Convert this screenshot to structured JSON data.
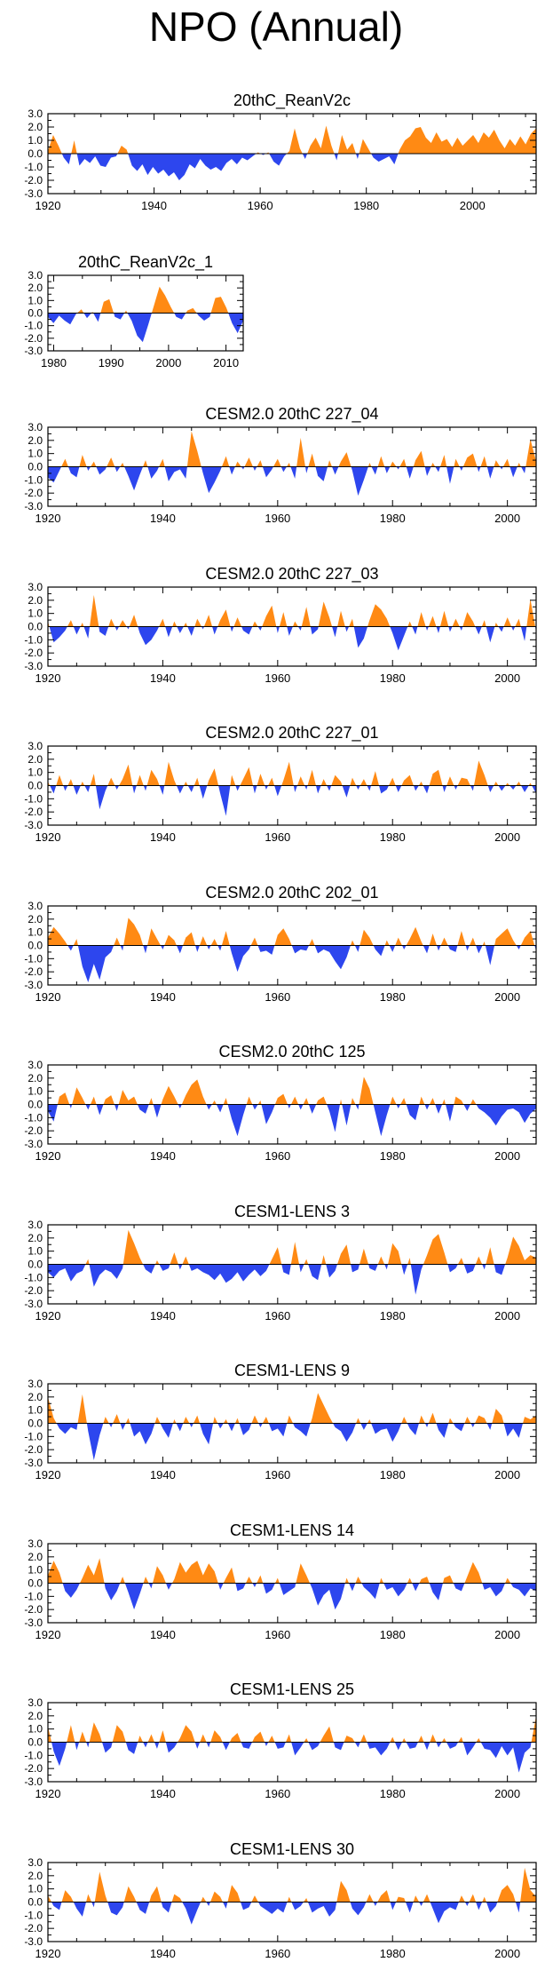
{
  "figure": {
    "title": "NPO (Annual)"
  },
  "colors": {
    "positive": "#ff8a14",
    "negative": "#2d46ee",
    "axis": "#000000"
  },
  "chart_data": [
    {
      "type": "area",
      "title": "20thC_ReanV2c",
      "x_start": 1920,
      "x_end": 2012,
      "ylim": [
        -3,
        3
      ],
      "xticks": [
        1920,
        1940,
        1960,
        1980,
        2000
      ],
      "yticks": [
        "3.0",
        "2.0",
        "1.0",
        "0.0",
        "-1.0",
        "-2.0",
        "-3.0"
      ],
      "values": [
        0.2,
        1.4,
        0.6,
        -0.3,
        -0.8,
        1.0,
        -0.9,
        -0.4,
        -0.7,
        -0.2,
        -0.9,
        -1.0,
        -0.3,
        -0.2,
        0.6,
        0.3,
        -0.9,
        -1.3,
        -0.8,
        -1.6,
        -1.0,
        -1.5,
        -1.2,
        -1.7,
        -1.4,
        -2.0,
        -1.6,
        -0.8,
        -1.1,
        -0.4,
        -0.9,
        -1.2,
        -1.0,
        -1.3,
        -0.7,
        -0.4,
        -0.8,
        -0.3,
        -0.5,
        -0.2,
        0.1,
        -0.1,
        0.1,
        -0.6,
        -0.9,
        -0.2,
        0.2,
        1.9,
        0.4,
        -0.4,
        0.6,
        1.2,
        0.4,
        2.1,
        0.6,
        -0.5,
        1.4,
        0.3,
        0.8,
        -0.4,
        1.1,
        0.4,
        -0.3,
        -0.6,
        -0.4,
        -0.2,
        -0.8,
        0.3,
        1.0,
        1.3,
        1.9,
        2.0,
        1.2,
        0.8,
        1.6,
        0.9,
        1.1,
        0.5,
        1.2,
        0.6,
        1.0,
        1.4,
        0.8,
        1.6,
        1.2,
        1.8,
        1.0,
        0.4,
        1.1,
        0.6,
        1.3,
        0.7,
        1.5,
        1.9
      ]
    },
    {
      "type": "area",
      "title": "20thC_ReanV2c_1",
      "x_start": 1979,
      "x_end": 2013,
      "ylim": [
        -3,
        3
      ],
      "xticks": [
        1980,
        1990,
        2000,
        2010
      ],
      "yticks": [
        "3.0",
        "2.0",
        "1.0",
        "0.0",
        "-1.0",
        "-2.0",
        "-3.0"
      ],
      "values": [
        -0.3,
        -0.8,
        -0.2,
        -0.6,
        -0.9,
        -0.1,
        0.3,
        -0.4,
        0.1,
        -0.7,
        0.9,
        1.1,
        -0.3,
        -0.5,
        0.2,
        -0.6,
        -1.8,
        -2.3,
        -0.9,
        0.6,
        2.1,
        1.4,
        0.5,
        -0.3,
        -0.5,
        0.2,
        0.4,
        -0.2,
        -0.6,
        -0.3,
        1.2,
        1.3,
        0.4,
        -0.8,
        -1.6,
        -0.6
      ]
    },
    {
      "type": "area",
      "title": "CESM2.0 20thC 227_04",
      "x_start": 1920,
      "x_end": 2005,
      "ylim": [
        -3,
        3
      ],
      "xticks": [
        1920,
        1940,
        1960,
        1980,
        2000
      ],
      "yticks": [
        "3.0",
        "2.0",
        "1.0",
        "0.0",
        "-1.0",
        "-2.0",
        "-3.0"
      ],
      "values": [
        -0.8,
        -1.2,
        -0.3,
        0.6,
        -0.5,
        -0.8,
        0.9,
        -0.3,
        0.4,
        -0.6,
        -0.2,
        0.7,
        -0.4,
        0.3,
        -0.7,
        -1.8,
        -0.6,
        0.5,
        -0.9,
        -0.3,
        0.6,
        -1.1,
        -0.4,
        -0.2,
        -0.9,
        2.7,
        1.2,
        -0.5,
        -2.0,
        -1.2,
        -0.3,
        0.8,
        -0.6,
        0.4,
        -0.2,
        0.7,
        -0.3,
        0.5,
        -0.8,
        -0.2,
        0.6,
        -0.4,
        0.3,
        -0.9,
        2.2,
        -0.5,
        1.0,
        -0.7,
        -1.1,
        0.5,
        -0.6,
        0.4,
        1.1,
        -0.3,
        -2.2,
        -1.0,
        0.3,
        -0.6,
        0.8,
        -0.5,
        0.4,
        -0.2,
        0.6,
        -0.9,
        0.5,
        1.2,
        -0.7,
        0.3,
        -0.4,
        0.9,
        -1.3,
        0.6,
        -0.3,
        0.7,
        1.0,
        -0.4,
        0.8,
        -0.9,
        0.5,
        -0.2,
        0.6,
        -0.8,
        0.3,
        -0.5,
        2.1,
        0.4
      ]
    },
    {
      "type": "area",
      "title": "CESM2.0 20thC 227_03",
      "x_start": 1920,
      "x_end": 2005,
      "ylim": [
        -3,
        3
      ],
      "xticks": [
        1920,
        1940,
        1960,
        1980,
        2000
      ],
      "yticks": [
        "3.0",
        "2.0",
        "1.0",
        "0.0",
        "-1.0",
        "-2.0",
        "-3.0"
      ],
      "values": [
        0.4,
        -1.2,
        -0.8,
        -0.3,
        0.5,
        -0.6,
        0.3,
        -0.9,
        2.4,
        -0.4,
        -0.7,
        0.6,
        -0.3,
        0.5,
        -0.2,
        0.9,
        -0.5,
        -1.4,
        -1.0,
        -0.3,
        0.6,
        -0.8,
        0.4,
        -0.5,
        0.3,
        -0.7,
        0.6,
        -0.2,
        0.9,
        -0.6,
        0.5,
        1.3,
        -0.4,
        0.7,
        -0.3,
        -0.6,
        0.4,
        -0.3,
        0.8,
        1.6,
        -0.5,
        1.1,
        -0.7,
        0.4,
        -0.3,
        1.5,
        -0.6,
        -0.2,
        1.9,
        0.7,
        -0.8,
        1.2,
        -0.4,
        0.6,
        -1.6,
        -0.9,
        0.5,
        1.7,
        1.3,
        0.6,
        -0.5,
        -1.8,
        -0.7,
        0.4,
        -0.6,
        1.1,
        -0.3,
        0.8,
        -0.5,
        1.2,
        -0.4,
        0.6,
        -0.3,
        1.1,
        0.4,
        -0.6,
        0.5,
        -1.2,
        0.3,
        -0.4,
        0.7,
        -0.3,
        0.6,
        -1.1,
        2.1,
        -0.4
      ]
    },
    {
      "type": "area",
      "title": "CESM2.0 20thC 227_01",
      "x_start": 1920,
      "x_end": 2005,
      "ylim": [
        -3,
        3
      ],
      "xticks": [
        1920,
        1940,
        1960,
        1980,
        2000
      ],
      "yticks": [
        "3.0",
        "2.0",
        "1.0",
        "0.0",
        "-1.0",
        "-2.0",
        "-3.0"
      ],
      "values": [
        0.3,
        -0.6,
        0.8,
        -0.4,
        0.5,
        -0.7,
        0.3,
        -0.5,
        0.9,
        -1.8,
        -0.4,
        0.6,
        -0.3,
        0.5,
        1.6,
        -0.6,
        0.8,
        -0.4,
        1.2,
        0.5,
        -0.7,
        1.8,
        0.4,
        -0.6,
        0.3,
        -0.5,
        0.6,
        -1.0,
        0.4,
        1.3,
        -0.6,
        -2.3,
        0.8,
        -0.4,
        0.5,
        1.4,
        -0.6,
        0.9,
        -0.3,
        0.6,
        -0.8,
        0.4,
        1.8,
        -0.5,
        0.7,
        -0.3,
        1.2,
        -0.6,
        0.5,
        -0.4,
        0.8,
        0.3,
        -0.9,
        0.6,
        -0.3,
        0.5,
        -0.4,
        1.1,
        -0.6,
        -0.3,
        0.6,
        -0.5,
        0.4,
        0.8,
        -0.4,
        0.3,
        -0.6,
        0.9,
        1.2,
        -0.5,
        0.7,
        -0.3,
        0.6,
        0.5,
        -0.4,
        1.9,
        0.8,
        -0.5,
        0.3,
        -0.4,
        0.2,
        -0.3,
        0.3,
        -0.5,
        0.2,
        -0.6
      ]
    },
    {
      "type": "area",
      "title": "CESM2.0 20thC 202_01",
      "x_start": 1920,
      "x_end": 2005,
      "ylim": [
        -3,
        3
      ],
      "xticks": [
        1920,
        1940,
        1960,
        1980,
        2000
      ],
      "yticks": [
        "3.0",
        "2.0",
        "1.0",
        "0.0",
        "-1.0",
        "-2.0",
        "-3.0"
      ],
      "values": [
        0.6,
        1.4,
        0.9,
        0.3,
        -0.4,
        0.5,
        -1.6,
        -2.8,
        -1.4,
        -2.6,
        -0.9,
        -0.5,
        0.6,
        -0.4,
        2.1,
        1.6,
        0.8,
        -0.6,
        1.3,
        0.5,
        -0.3,
        0.8,
        0.4,
        -0.6,
        0.6,
        1.0,
        -0.5,
        0.7,
        -0.3,
        0.5,
        -0.4,
        1.1,
        -0.6,
        -2.0,
        -0.8,
        -0.3,
        0.6,
        -0.5,
        -0.4,
        -0.7,
        0.8,
        1.3,
        0.5,
        -0.6,
        -0.3,
        -0.4,
        0.5,
        -0.6,
        -0.3,
        -0.5,
        -1.2,
        -1.8,
        -0.9,
        0.4,
        -0.5,
        1.2,
        0.6,
        -0.3,
        -0.8,
        0.4,
        -0.5,
        0.6,
        -0.3,
        0.5,
        1.4,
        0.3,
        -0.6,
        0.9,
        -0.4,
        0.6,
        -0.3,
        -0.5,
        1.1,
        -0.4,
        0.6,
        -0.6,
        0.3,
        -1.5,
        0.5,
        0.9,
        1.3,
        0.4,
        -0.3,
        0.6,
        1.1,
        -0.4
      ]
    },
    {
      "type": "area",
      "title": "CESM2.0 20thC 125",
      "x_start": 1920,
      "x_end": 2005,
      "ylim": [
        -3,
        3
      ],
      "xticks": [
        1920,
        1940,
        1960,
        1980,
        2000
      ],
      "yticks": [
        "3.0",
        "2.0",
        "1.0",
        "0.0",
        "-1.0",
        "-2.0",
        "-3.0"
      ],
      "values": [
        -0.5,
        -1.3,
        0.6,
        0.9,
        -0.3,
        1.3,
        0.5,
        -0.4,
        0.6,
        -0.8,
        0.4,
        0.7,
        -0.5,
        1.1,
        0.3,
        0.6,
        -0.4,
        -0.7,
        0.5,
        -1.0,
        0.4,
        1.4,
        0.6,
        -0.3,
        0.7,
        1.5,
        1.9,
        0.6,
        -0.4,
        0.3,
        -0.6,
        0.5,
        -1.1,
        -2.4,
        -0.8,
        0.6,
        -0.4,
        0.3,
        -1.5,
        -0.6,
        0.5,
        0.8,
        -0.3,
        0.6,
        -0.4,
        0.5,
        -0.7,
        0.3,
        0.6,
        -0.5,
        -2.1,
        0.4,
        -1.6,
        0.5,
        -0.4,
        2.1,
        1.2,
        -0.6,
        -2.4,
        -0.8,
        0.6,
        -0.3,
        0.5,
        -0.8,
        -1.2,
        0.6,
        -0.4,
        0.5,
        -0.7,
        0.4,
        -1.3,
        0.6,
        0.3,
        -0.5,
        0.4,
        -0.3,
        -0.6,
        -1.0,
        -1.6,
        -0.9,
        -0.4,
        -0.3,
        -0.6,
        -1.4,
        -0.7,
        -0.3
      ]
    },
    {
      "type": "area",
      "title": "CESM1-LENS 3",
      "x_start": 1920,
      "x_end": 2005,
      "ylim": [
        -3,
        3
      ],
      "xticks": [
        1920,
        1940,
        1960,
        1980,
        2000
      ],
      "yticks": [
        "3.0",
        "2.0",
        "1.0",
        "0.0",
        "-1.0",
        "-2.0",
        "-3.0"
      ],
      "values": [
        -0.6,
        -1.0,
        -0.5,
        -0.3,
        -1.3,
        -0.7,
        -0.5,
        0.4,
        -1.7,
        -0.8,
        -0.4,
        -0.6,
        -1.1,
        -0.3,
        2.6,
        1.6,
        0.5,
        -0.4,
        -0.7,
        0.3,
        -0.5,
        -0.3,
        0.9,
        -0.4,
        0.6,
        -0.5,
        -0.3,
        -0.6,
        -0.8,
        -1.2,
        -0.7,
        -1.4,
        -1.1,
        -0.6,
        -1.3,
        -0.8,
        -0.4,
        -0.9,
        -0.5,
        0.4,
        1.3,
        -0.6,
        -0.8,
        1.7,
        -0.6,
        0.4,
        -0.9,
        -1.2,
        0.7,
        -1.0,
        -0.5,
        0.8,
        1.5,
        -0.6,
        -0.4,
        1.2,
        -0.3,
        -0.5,
        0.6,
        -0.4,
        1.6,
        1.0,
        -0.8,
        0.5,
        -2.3,
        -0.4,
        0.7,
        1.9,
        2.3,
        0.9,
        -0.6,
        -0.3,
        0.5,
        -0.7,
        -0.5,
        0.6,
        -0.4,
        1.3,
        -0.6,
        -0.8,
        0.5,
        2.1,
        1.4,
        0.3,
        0.7,
        0.5
      ]
    },
    {
      "type": "area",
      "title": "CESM1-LENS 9",
      "x_start": 1920,
      "x_end": 2005,
      "ylim": [
        -3,
        3
      ],
      "xticks": [
        1920,
        1940,
        1960,
        1980,
        2000
      ],
      "yticks": [
        "3.0",
        "2.0",
        "1.0",
        "0.0",
        "-1.0",
        "-2.0",
        "-3.0"
      ],
      "values": [
        2.0,
        0.4,
        -0.4,
        -0.8,
        -0.3,
        -0.5,
        2.2,
        -0.6,
        -2.8,
        -0.9,
        0.5,
        -0.3,
        0.7,
        -0.5,
        0.4,
        -1.0,
        -0.6,
        -1.6,
        -0.8,
        0.5,
        -0.4,
        -1.1,
        0.3,
        -0.6,
        0.5,
        -0.3,
        0.6,
        -0.8,
        -1.6,
        0.5,
        -0.4,
        0.3,
        -0.6,
        0.4,
        -0.9,
        -0.5,
        0.6,
        -0.3,
        0.5,
        -0.6,
        -0.4,
        -1.0,
        0.6,
        -0.3,
        -0.6,
        -1.0,
        0.4,
        2.3,
        1.4,
        0.5,
        -0.3,
        -0.6,
        -1.4,
        -0.7,
        0.4,
        -0.5,
        0.3,
        -0.8,
        -0.5,
        -0.4,
        -1.4,
        -0.6,
        0.5,
        -0.4,
        -0.9,
        0.6,
        -0.3,
        0.8,
        -0.5,
        -1.1,
        0.4,
        -0.3,
        -0.6,
        0.5,
        -0.3,
        0.6,
        0.4,
        -0.5,
        1.1,
        0.6,
        -1.0,
        -0.4,
        -1.1,
        0.5,
        0.3,
        0.6
      ]
    },
    {
      "type": "area",
      "title": "CESM1-LENS 14",
      "x_start": 1920,
      "x_end": 2005,
      "ylim": [
        -3,
        3
      ],
      "xticks": [
        1920,
        1940,
        1960,
        1980,
        2000
      ],
      "yticks": [
        "3.0",
        "2.0",
        "1.0",
        "0.0",
        "-1.0",
        "-2.0",
        "-3.0"
      ],
      "values": [
        0.6,
        1.7,
        0.8,
        -0.6,
        -1.1,
        -0.5,
        0.4,
        1.4,
        0.6,
        1.9,
        -0.4,
        -1.3,
        -0.6,
        0.5,
        -0.7,
        -2.0,
        -0.8,
        0.5,
        -0.4,
        1.3,
        0.6,
        -0.5,
        0.3,
        1.6,
        0.8,
        1.4,
        1.7,
        0.6,
        1.5,
        0.9,
        -0.5,
        0.4,
        1.2,
        -0.6,
        -0.4,
        0.5,
        -0.3,
        0.6,
        -0.8,
        -0.5,
        0.4,
        -0.9,
        -0.6,
        -0.3,
        1.5,
        0.6,
        -0.4,
        -1.7,
        -0.9,
        -0.5,
        -2.0,
        -1.2,
        0.4,
        -0.6,
        0.5,
        -0.3,
        -0.7,
        -1.2,
        0.4,
        -0.5,
        -0.3,
        -1.0,
        -0.5,
        0.4,
        -0.6,
        0.3,
        0.5,
        -0.7,
        -1.3,
        0.4,
        0.6,
        -0.4,
        -0.6,
        0.5,
        1.6,
        0.8,
        -0.5,
        -0.3,
        -1.0,
        -0.6,
        0.4,
        -0.3,
        -0.5,
        -1.0,
        -0.4,
        -0.6
      ]
    },
    {
      "type": "area",
      "title": "CESM1-LENS 25",
      "x_start": 1920,
      "x_end": 2005,
      "ylim": [
        -3,
        3
      ],
      "xticks": [
        1920,
        1940,
        1960,
        1980,
        2000
      ],
      "yticks": [
        "3.0",
        "2.0",
        "1.0",
        "0.0",
        "-1.0",
        "-2.0",
        "-3.0"
      ],
      "values": [
        1.2,
        -0.7,
        -1.8,
        -0.5,
        1.3,
        -0.6,
        0.8,
        -0.4,
        1.5,
        0.6,
        -0.8,
        -0.4,
        1.3,
        0.8,
        -0.6,
        -0.9,
        0.5,
        -0.4,
        0.6,
        -0.5,
        0.9,
        -0.8,
        -0.4,
        0.3,
        1.3,
        0.8,
        -0.5,
        0.6,
        -0.4,
        0.9,
        0.4,
        -0.6,
        0.3,
        0.7,
        -0.4,
        -0.5,
        0.4,
        0.8,
        -0.3,
        0.5,
        -0.5,
        -0.4,
        0.6,
        -1.0,
        -0.4,
        0.3,
        -0.6,
        -0.3,
        0.5,
        1.2,
        -0.4,
        -0.6,
        0.5,
        0.3,
        -0.4,
        0.6,
        -0.5,
        -0.4,
        -1.0,
        -0.5,
        0.4,
        -0.6,
        0.3,
        -0.5,
        -0.4,
        0.5,
        -0.6,
        0.6,
        -0.4,
        0.3,
        -0.5,
        -0.3,
        0.4,
        -1.0,
        -0.4,
        0.3,
        -0.5,
        -0.6,
        -1.2,
        -0.3,
        -1.0,
        -0.4,
        -2.3,
        -0.8,
        -0.4,
        2.0
      ]
    },
    {
      "type": "area",
      "title": "CESM1-LENS 30",
      "x_start": 1920,
      "x_end": 2005,
      "ylim": [
        -3,
        3
      ],
      "xticks": [
        1920,
        1940,
        1960,
        1980,
        2000
      ],
      "yticks": [
        "3.0",
        "2.0",
        "1.0",
        "0.0",
        "-1.0",
        "-2.0",
        "-3.0"
      ],
      "values": [
        0.5,
        -0.3,
        -0.6,
        0.9,
        0.4,
        -0.5,
        -1.1,
        0.6,
        -0.4,
        2.3,
        0.5,
        -0.8,
        -1.0,
        -0.4,
        1.2,
        0.4,
        -0.6,
        -0.9,
        0.5,
        1.2,
        -0.4,
        -0.8,
        0.6,
        0.3,
        -0.5,
        -1.7,
        -0.6,
        0.4,
        -0.3,
        0.8,
        0.4,
        -0.5,
        1.3,
        0.7,
        -0.6,
        -0.4,
        0.5,
        -0.3,
        -0.6,
        -0.9,
        -0.5,
        -0.8,
        0.4,
        -0.6,
        -0.3,
        0.3,
        -0.8,
        -0.5,
        -0.3,
        -1.1,
        -0.6,
        1.6,
        0.9,
        -0.5,
        -1.0,
        -0.4,
        0.6,
        -0.3,
        0.5,
        0.9,
        -0.6,
        0.4,
        0.3,
        -0.8,
        0.5,
        -0.3,
        0.6,
        -0.5,
        -1.6,
        -0.7,
        -0.4,
        -0.6,
        0.5,
        -0.3,
        0.6,
        -0.6,
        0.4,
        -0.8,
        -0.3,
        0.9,
        1.3,
        0.6,
        -0.8,
        2.6,
        0.9,
        0.4
      ]
    }
  ]
}
